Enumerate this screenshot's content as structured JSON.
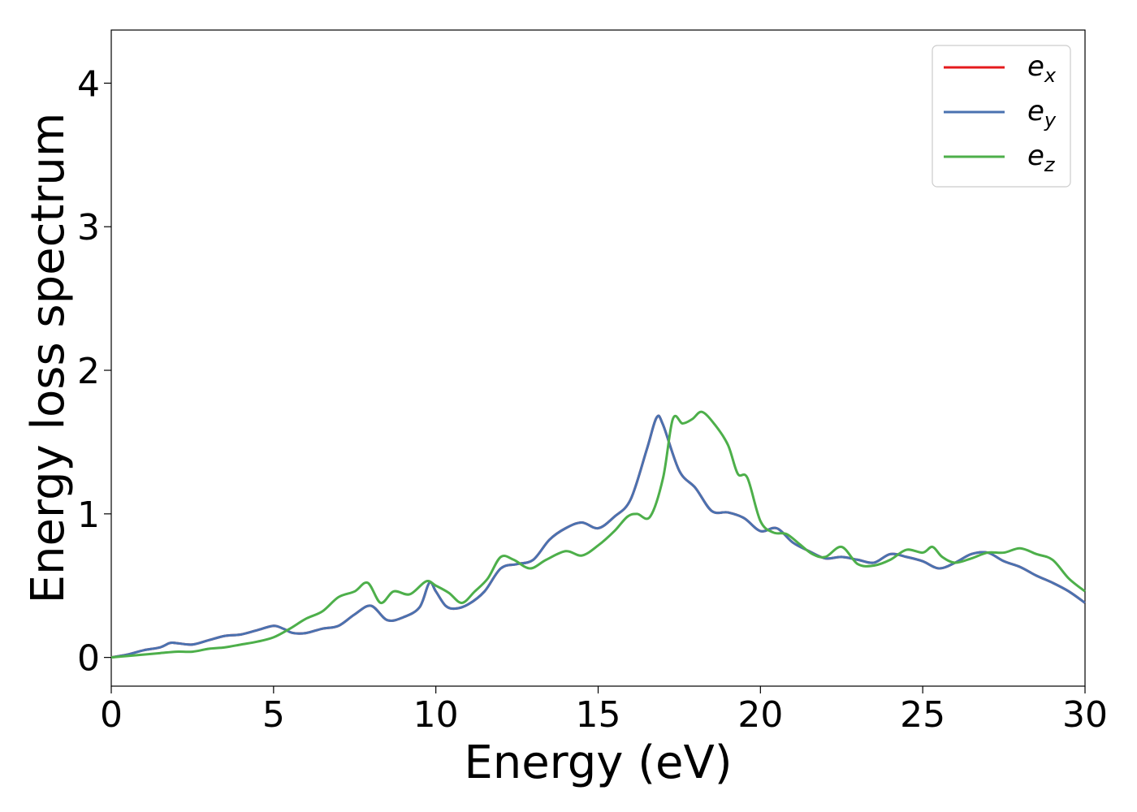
{
  "chart_data": {
    "type": "line",
    "title": "",
    "xlabel": "Energy (eV)",
    "ylabel": "Energy loss spectrum",
    "xlim": [
      0,
      30
    ],
    "ylim": [
      -0.2,
      4.37
    ],
    "xticks": [
      0,
      5,
      10,
      15,
      20,
      25,
      30
    ],
    "yticks": [
      0,
      1,
      2,
      3,
      4
    ],
    "grid": false,
    "legend_position": "top-right",
    "series": [
      {
        "name": "e",
        "subscript": "x",
        "color": "#e41a1c",
        "x": [
          0,
          0.5,
          1,
          1.5,
          1.8,
          2,
          2.5,
          3,
          3.5,
          4,
          4.5,
          5,
          5.3,
          5.6,
          6,
          6.5,
          7,
          7.5,
          8,
          8.5,
          9,
          9.5,
          9.8,
          10,
          10.3,
          10.6,
          11,
          11.5,
          12,
          12.5,
          13,
          13.5,
          14,
          14.5,
          15,
          15.5,
          16,
          16.5,
          16.8,
          17,
          17.5,
          18,
          18.5,
          19,
          19.5,
          20,
          20.5,
          21,
          21.5,
          22,
          22.5,
          23,
          23.5,
          24,
          24.5,
          25,
          25.5,
          26,
          26.5,
          27,
          27.5,
          28,
          28.5,
          29,
          29.5,
          30
        ],
        "y": [
          0,
          0.02,
          0.05,
          0.07,
          0.1,
          0.1,
          0.09,
          0.12,
          0.15,
          0.16,
          0.19,
          0.22,
          0.2,
          0.17,
          0.17,
          0.2,
          0.22,
          0.3,
          0.36,
          0.26,
          0.28,
          0.35,
          0.52,
          0.46,
          0.36,
          0.34,
          0.37,
          0.46,
          0.62,
          0.65,
          0.68,
          0.82,
          0.9,
          0.94,
          0.9,
          0.98,
          1.1,
          1.45,
          1.67,
          1.62,
          1.3,
          1.18,
          1.02,
          1.01,
          0.97,
          0.88,
          0.9,
          0.8,
          0.74,
          0.69,
          0.7,
          0.68,
          0.66,
          0.72,
          0.7,
          0.67,
          0.62,
          0.66,
          0.72,
          0.73,
          0.67,
          0.63,
          0.57,
          0.52,
          0.46,
          0.38
        ]
      },
      {
        "name": "e",
        "subscript": "y",
        "color": "#4a72b0",
        "x": [
          0,
          0.5,
          1,
          1.5,
          1.8,
          2,
          2.5,
          3,
          3.5,
          4,
          4.5,
          5,
          5.3,
          5.6,
          6,
          6.5,
          7,
          7.5,
          8,
          8.5,
          9,
          9.5,
          9.8,
          10,
          10.3,
          10.6,
          11,
          11.5,
          12,
          12.5,
          13,
          13.5,
          14,
          14.5,
          15,
          15.5,
          16,
          16.5,
          16.8,
          17,
          17.5,
          18,
          18.5,
          19,
          19.5,
          20,
          20.5,
          21,
          21.5,
          22,
          22.5,
          23,
          23.5,
          24,
          24.5,
          25,
          25.5,
          26,
          26.5,
          27,
          27.5,
          28,
          28.5,
          29,
          29.5,
          30
        ],
        "y": [
          0,
          0.02,
          0.05,
          0.07,
          0.1,
          0.1,
          0.09,
          0.12,
          0.15,
          0.16,
          0.19,
          0.22,
          0.2,
          0.17,
          0.17,
          0.2,
          0.22,
          0.3,
          0.36,
          0.26,
          0.28,
          0.35,
          0.52,
          0.46,
          0.36,
          0.34,
          0.37,
          0.46,
          0.62,
          0.65,
          0.68,
          0.82,
          0.9,
          0.94,
          0.9,
          0.98,
          1.1,
          1.45,
          1.67,
          1.62,
          1.3,
          1.18,
          1.02,
          1.01,
          0.97,
          0.88,
          0.9,
          0.8,
          0.74,
          0.69,
          0.7,
          0.68,
          0.66,
          0.72,
          0.7,
          0.67,
          0.62,
          0.66,
          0.72,
          0.73,
          0.67,
          0.63,
          0.57,
          0.52,
          0.46,
          0.38
        ]
      },
      {
        "name": "e",
        "subscript": "z",
        "color": "#4daf4a",
        "x": [
          0,
          0.5,
          1,
          1.5,
          2,
          2.5,
          3,
          3.5,
          4,
          4.5,
          5,
          5.5,
          6,
          6.5,
          7,
          7.5,
          7.9,
          8.3,
          8.7,
          9.2,
          9.7,
          10,
          10.4,
          10.8,
          11.2,
          11.6,
          12,
          12.4,
          12.9,
          13.4,
          14,
          14.5,
          15,
          15.5,
          15.9,
          16.2,
          16.6,
          17,
          17.3,
          17.6,
          17.9,
          18.2,
          18.6,
          19,
          19.3,
          19.6,
          20,
          20.4,
          20.8,
          21.2,
          21.6,
          22,
          22.5,
          23,
          23.5,
          24,
          24.5,
          25,
          25.3,
          25.6,
          26,
          26.5,
          27,
          27.5,
          28,
          28.5,
          29,
          29.5,
          30
        ],
        "y": [
          0,
          0.01,
          0.02,
          0.03,
          0.04,
          0.04,
          0.06,
          0.07,
          0.09,
          0.11,
          0.14,
          0.2,
          0.27,
          0.32,
          0.42,
          0.46,
          0.52,
          0.38,
          0.46,
          0.44,
          0.53,
          0.5,
          0.45,
          0.38,
          0.46,
          0.55,
          0.7,
          0.68,
          0.62,
          0.68,
          0.74,
          0.71,
          0.78,
          0.88,
          0.98,
          1.0,
          0.98,
          1.25,
          1.66,
          1.63,
          1.66,
          1.71,
          1.62,
          1.48,
          1.28,
          1.25,
          0.95,
          0.87,
          0.86,
          0.79,
          0.72,
          0.7,
          0.77,
          0.65,
          0.64,
          0.68,
          0.75,
          0.73,
          0.77,
          0.7,
          0.66,
          0.69,
          0.73,
          0.73,
          0.76,
          0.72,
          0.68,
          0.55,
          0.46
        ]
      }
    ]
  }
}
